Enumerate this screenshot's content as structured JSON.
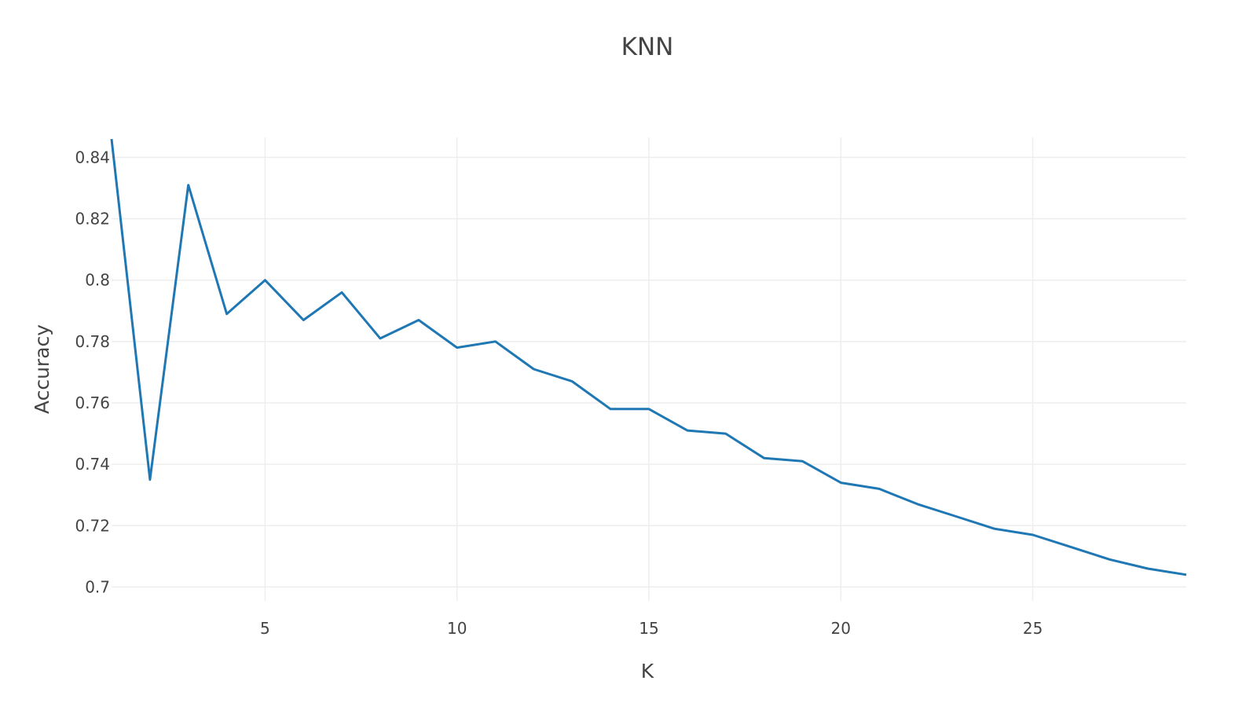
{
  "chart_data": {
    "type": "line",
    "title": "KNN",
    "xlabel": "K",
    "ylabel": "Accuracy",
    "xlim": [
      1,
      29
    ],
    "ylim": [
      0.6955,
      0.8465
    ],
    "x_ticks": [
      5,
      10,
      15,
      20,
      25
    ],
    "y_ticks": [
      0.7,
      0.72,
      0.74,
      0.76,
      0.78,
      0.8,
      0.82,
      0.84
    ],
    "x_tick_labels": [
      "5",
      "10",
      "15",
      "20",
      "25"
    ],
    "y_tick_labels": [
      "0.7",
      "0.72",
      "0.74",
      "0.76",
      "0.78",
      "0.8",
      "0.82",
      "0.84"
    ],
    "grid": true,
    "line_color": "#1f77b4",
    "series": [
      {
        "x": [
          1,
          2,
          3,
          4,
          5,
          6,
          7,
          8,
          9,
          10,
          11,
          12,
          13,
          14,
          15,
          16,
          17,
          18,
          19,
          20,
          21,
          22,
          23,
          24,
          25,
          26,
          27,
          28,
          29
        ],
        "values": [
          0.846,
          0.735,
          0.831,
          0.789,
          0.8,
          0.787,
          0.796,
          0.781,
          0.787,
          0.778,
          0.78,
          0.771,
          0.767,
          0.758,
          0.758,
          0.751,
          0.75,
          0.742,
          0.741,
          0.734,
          0.732,
          0.727,
          0.723,
          0.719,
          0.717,
          0.713,
          0.709,
          0.706,
          0.704
        ]
      }
    ]
  }
}
